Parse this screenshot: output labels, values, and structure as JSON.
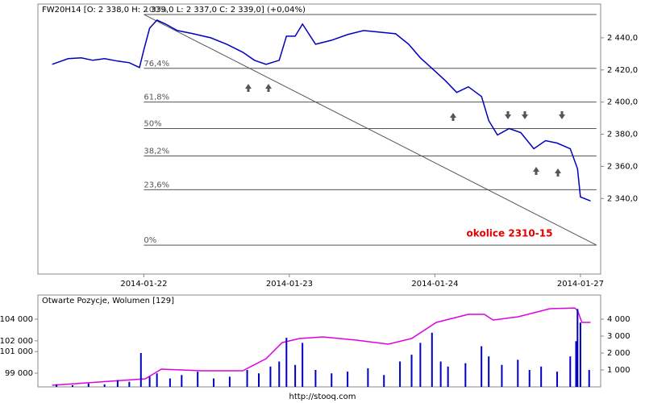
{
  "chart_data": [
    {
      "type": "line",
      "title": "FW20H14 [O: 2 338,0  H: 2 339,0  L: 2 337,0  C: 2 339,0] (+0,04%)",
      "color": "#0000c0",
      "x": [
        -0.63,
        -0.52,
        -0.43,
        -0.35,
        -0.27,
        -0.18,
        -0.1,
        -0.03,
        0,
        0.04,
        0.09,
        0.15,
        0.23,
        0.34,
        0.46,
        0.57,
        0.68,
        0.76,
        0.84,
        0.93,
        0.98,
        1.04,
        1.09,
        1.18,
        1.29,
        1.4,
        1.51,
        1.62,
        1.73,
        1.82,
        1.9,
        1.98,
        2.07,
        2.15,
        2.23,
        2.32,
        2.37,
        2.43,
        2.51,
        2.59,
        2.68,
        2.76,
        2.84,
        2.93,
        2.98,
        3.0,
        3.07
      ],
      "values": [
        2423.5,
        2427,
        2427.5,
        2426,
        2427,
        2425.5,
        2424.5,
        2421.5,
        2432.5,
        2446,
        2451,
        2448.5,
        2444.5,
        2442.5,
        2440,
        2436,
        2431,
        2426,
        2423.5,
        2426,
        2441,
        2441,
        2448.5,
        2436,
        2438.5,
        2442,
        2444.5,
        2443.5,
        2442.5,
        2436,
        2427.5,
        2421,
        2413.5,
        2406,
        2409.5,
        2403.5,
        2388.5,
        2379.5,
        2383.5,
        2381,
        2371,
        2376,
        2374.5,
        2371,
        2358.5,
        2341,
        2338.5
      ],
      "xlim": [
        -0.728,
        3.139
      ],
      "xticks": [
        {
          "value": 0,
          "label": "2014-01-22"
        },
        {
          "value": 1,
          "label": "2014-01-23"
        },
        {
          "value": 2,
          "label": "2014-01-24"
        },
        {
          "value": 3,
          "label": "2014-01-27"
        }
      ],
      "ylim": [
        2293,
        2461
      ],
      "yticks": [
        {
          "value": 2340,
          "label": "2 340,0"
        },
        {
          "value": 2360,
          "label": "2 360,0"
        },
        {
          "value": 2380,
          "label": "2 380,0"
        },
        {
          "value": 2400,
          "label": "2 400,0"
        },
        {
          "value": 2420,
          "label": "2 420,0"
        },
        {
          "value": 2440,
          "label": "2 440,0"
        }
      ],
      "fibonacci": {
        "x": [
          0,
          3.11
        ],
        "levels": [
          {
            "value": 2454.5,
            "label": "100%"
          },
          {
            "value": 2421,
            "label": "76,4%"
          },
          {
            "value": 2400,
            "label": "61,8%"
          },
          {
            "value": 2383.5,
            "label": "50%"
          },
          {
            "value": 2366.5,
            "label": "38,2%"
          },
          {
            "value": 2345.5,
            "label": "23,6%"
          },
          {
            "value": 2311,
            "label": "0%"
          }
        ]
      },
      "annotation": "okolice 2310-15",
      "source": "http://stooq.com"
    },
    {
      "type": "combo",
      "title": "Otwarte Pozycje, Wolumen [129]",
      "xlim": [
        -0.728,
        3.139
      ],
      "ylim": [
        97730,
        106240
      ],
      "yticks": [
        {
          "value": 99000,
          "label": "99 000"
        },
        {
          "value": 101000,
          "label": "101 000"
        },
        {
          "value": 102000,
          "label": "102 000"
        },
        {
          "value": 104000,
          "label": "104 000"
        }
      ],
      "y2lim": [
        0,
        5430
      ],
      "y2ticks": [
        {
          "value": 1000,
          "label": "1 000"
        },
        {
          "value": 2000,
          "label": "2 000"
        },
        {
          "value": 3000,
          "label": "3 000"
        },
        {
          "value": 4000,
          "label": "4 000"
        }
      ],
      "series": [
        {
          "type": "line",
          "color": "#e000e0",
          "x": [
            -0.63,
            0.01,
            0.12,
            0.4,
            0.68,
            0.84,
            0.95,
            1.07,
            1.23,
            1.46,
            1.68,
            1.84,
            2.01,
            2.23,
            2.34,
            2.4,
            2.57,
            2.79,
            2.96,
            2.98,
            3.01,
            3.07
          ],
          "values": [
            97880,
            98480,
            99370,
            99220,
            99220,
            100340,
            101830,
            102210,
            102360,
            102060,
            101690,
            102210,
            103700,
            104450,
            104450,
            103920,
            104220,
            104970,
            105040,
            104820,
            103700,
            103700
          ]
        },
        {
          "type": "bar",
          "color": "#0000c0",
          "axis": "y2",
          "x": [
            -0.6,
            -0.49,
            -0.38,
            -0.27,
            -0.18,
            -0.1,
            -0.02,
            0.04,
            0.09,
            0.18,
            0.26,
            0.37,
            0.48,
            0.59,
            0.71,
            0.79,
            0.87,
            0.93,
            0.98,
            1.04,
            1.09,
            1.18,
            1.29,
            1.4,
            1.54,
            1.65,
            1.76,
            1.84,
            1.9,
            1.98,
            2.04,
            2.09,
            2.21,
            2.32,
            2.37,
            2.46,
            2.57,
            2.65,
            2.73,
            2.84,
            2.93,
            2.97,
            2.98,
            3.0,
            3.06
          ],
          "values": [
            150,
            100,
            200,
            150,
            400,
            300,
            2000,
            600,
            800,
            500,
            700,
            900,
            500,
            600,
            1000,
            800,
            1200,
            1500,
            2900,
            1300,
            2600,
            1000,
            800,
            900,
            1100,
            700,
            1500,
            1900,
            2600,
            3200,
            1500,
            1200,
            1400,
            2400,
            1800,
            1300,
            1600,
            1000,
            1200,
            900,
            1800,
            2700,
            4600,
            3800,
            1000
          ]
        }
      ]
    }
  ]
}
